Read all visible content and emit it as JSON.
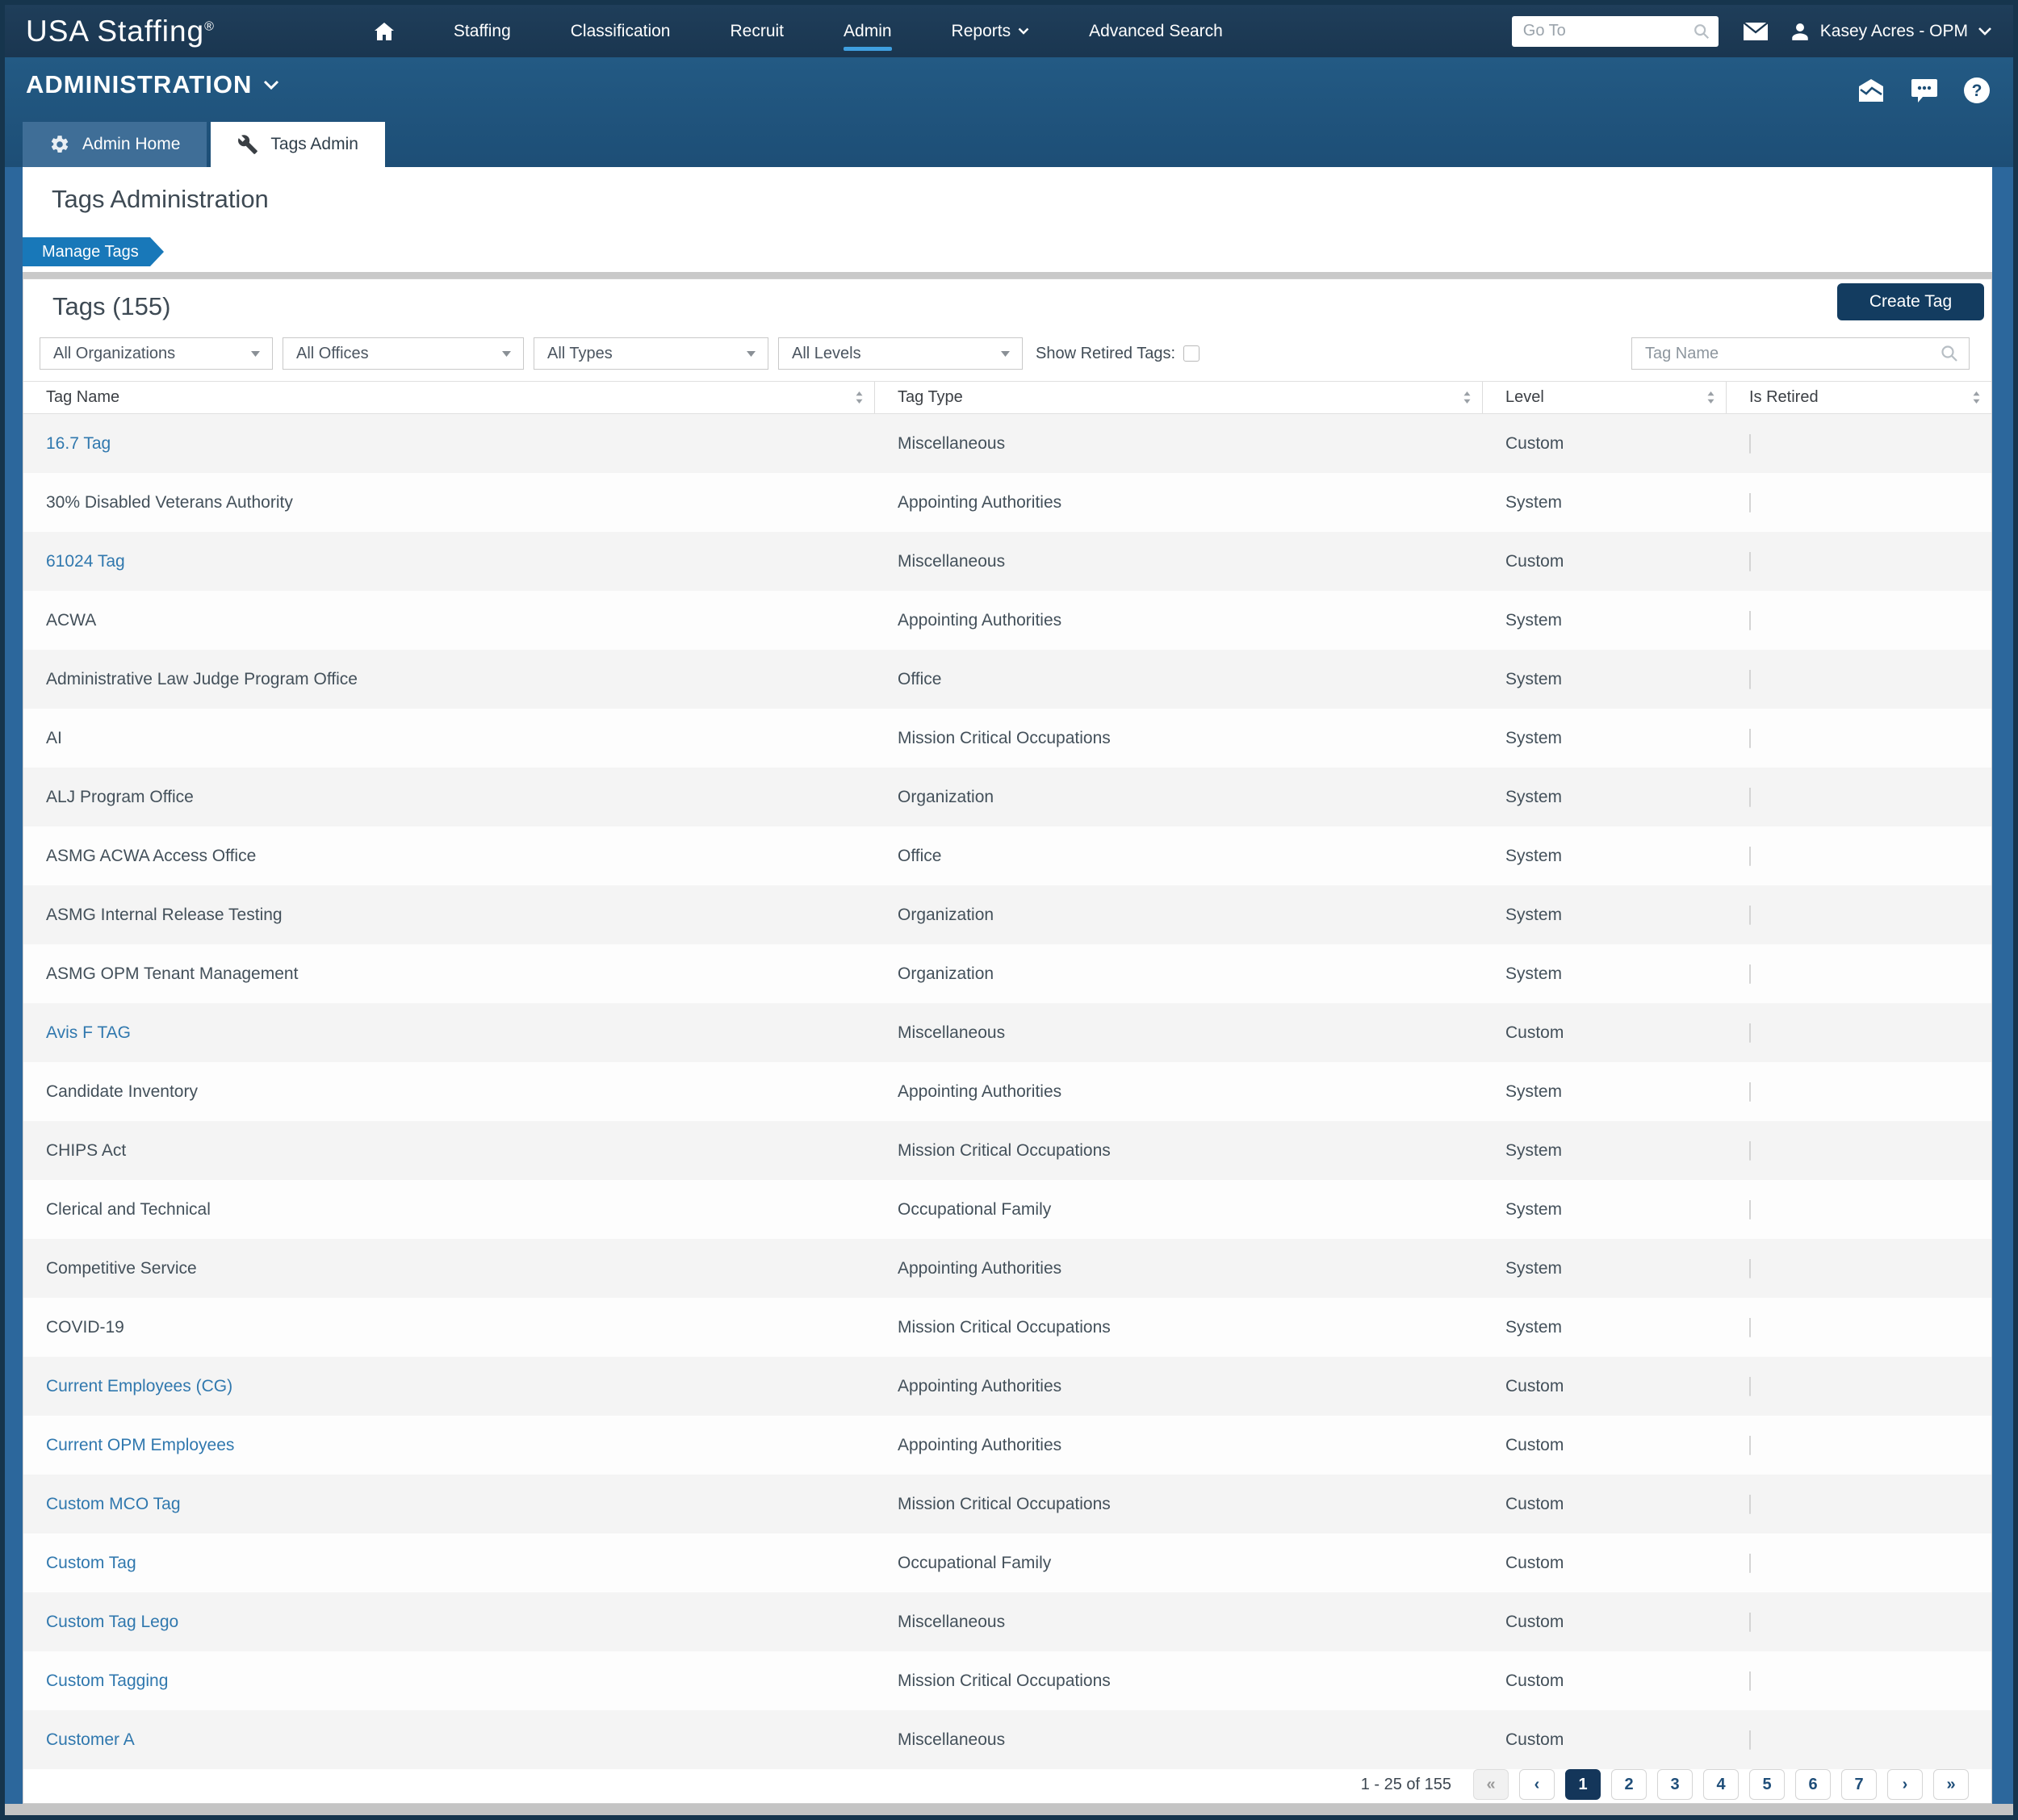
{
  "colors": {
    "topnav_bg": "#1d3a55",
    "band_bg": "#215781",
    "accent_blue": "#3f9fe0",
    "breadcrumb_bg": "#1878b9",
    "link_blue": "#3078ae",
    "button_bg": "#133c60",
    "page_bg": "#2c679c",
    "row_alt_bg": "#f4f4f4"
  },
  "topnav": {
    "brand": "USA Staffing",
    "brand_reg": "®",
    "items": [
      {
        "label": "Staffing",
        "active": false,
        "caret": false
      },
      {
        "label": "Classification",
        "active": false,
        "caret": false
      },
      {
        "label": "Recruit",
        "active": false,
        "caret": false
      },
      {
        "label": "Admin",
        "active": true,
        "caret": false
      },
      {
        "label": "Reports",
        "active": false,
        "caret": true
      },
      {
        "label": "Advanced Search",
        "active": false,
        "caret": false
      }
    ],
    "goto_placeholder": "Go To",
    "user_name": "Kasey Acres - OPM"
  },
  "admin_bar": {
    "title": "ADMINISTRATION"
  },
  "tabs": [
    {
      "label": "Admin Home",
      "icon": "gear-icon",
      "active": false
    },
    {
      "label": "Tags Admin",
      "icon": "wrench-icon",
      "active": true
    }
  ],
  "page": {
    "title": "Tags Administration",
    "breadcrumb": "Manage Tags"
  },
  "panel": {
    "heading": "Tags (155)",
    "create_button": "Create Tag",
    "filters": [
      "All Organizations",
      "All Offices",
      "All Types",
      "All Levels"
    ],
    "show_retired_label": "Show Retired Tags:",
    "show_retired_checked": false,
    "search_placeholder": "Tag Name"
  },
  "table": {
    "columns": [
      "Tag Name",
      "Tag Type",
      "Level",
      "Is Retired"
    ],
    "rows": [
      {
        "name": "16.7 Tag",
        "type": "Miscellaneous",
        "level": "Custom",
        "link": true,
        "retired": false
      },
      {
        "name": "30% Disabled Veterans Authority",
        "type": "Appointing Authorities",
        "level": "System",
        "link": false,
        "retired": false
      },
      {
        "name": "61024 Tag",
        "type": "Miscellaneous",
        "level": "Custom",
        "link": true,
        "retired": false
      },
      {
        "name": "ACWA",
        "type": "Appointing Authorities",
        "level": "System",
        "link": false,
        "retired": false
      },
      {
        "name": "Administrative Law Judge Program Office",
        "type": "Office",
        "level": "System",
        "link": false,
        "retired": false
      },
      {
        "name": "AI",
        "type": "Mission Critical Occupations",
        "level": "System",
        "link": false,
        "retired": false
      },
      {
        "name": "ALJ Program Office",
        "type": "Organization",
        "level": "System",
        "link": false,
        "retired": false
      },
      {
        "name": "ASMG ACWA Access Office",
        "type": "Office",
        "level": "System",
        "link": false,
        "retired": false
      },
      {
        "name": "ASMG Internal Release Testing",
        "type": "Organization",
        "level": "System",
        "link": false,
        "retired": false
      },
      {
        "name": "ASMG OPM Tenant Management",
        "type": "Organization",
        "level": "System",
        "link": false,
        "retired": false
      },
      {
        "name": "Avis F TAG",
        "type": "Miscellaneous",
        "level": "Custom",
        "link": true,
        "retired": false
      },
      {
        "name": "Candidate Inventory",
        "type": "Appointing Authorities",
        "level": "System",
        "link": false,
        "retired": false
      },
      {
        "name": "CHIPS Act",
        "type": "Mission Critical Occupations",
        "level": "System",
        "link": false,
        "retired": false
      },
      {
        "name": "Clerical and Technical",
        "type": "Occupational Family",
        "level": "System",
        "link": false,
        "retired": false
      },
      {
        "name": "Competitive Service",
        "type": "Appointing Authorities",
        "level": "System",
        "link": false,
        "retired": false
      },
      {
        "name": "COVID-19",
        "type": "Mission Critical Occupations",
        "level": "System",
        "link": false,
        "retired": false
      },
      {
        "name": "Current Employees (CG)",
        "type": "Appointing Authorities",
        "level": "Custom",
        "link": true,
        "retired": false
      },
      {
        "name": "Current OPM Employees",
        "type": "Appointing Authorities",
        "level": "Custom",
        "link": true,
        "retired": false
      },
      {
        "name": "Custom MCO Tag",
        "type": "Mission Critical Occupations",
        "level": "Custom",
        "link": true,
        "retired": false
      },
      {
        "name": "Custom Tag",
        "type": "Occupational Family",
        "level": "Custom",
        "link": true,
        "retired": false
      },
      {
        "name": "Custom Tag Lego",
        "type": "Miscellaneous",
        "level": "Custom",
        "link": true,
        "retired": false
      },
      {
        "name": "Custom Tagging",
        "type": "Mission Critical Occupations",
        "level": "Custom",
        "link": true,
        "retired": false
      },
      {
        "name": "Customer A",
        "type": "Miscellaneous",
        "level": "Custom",
        "link": true,
        "retired": false
      }
    ]
  },
  "pagination": {
    "summary": "1 - 25 of 155",
    "first": "«",
    "prev": "‹",
    "next": "›",
    "last": "»",
    "pages": [
      "1",
      "2",
      "3",
      "4",
      "5",
      "6",
      "7"
    ],
    "active_page": "1"
  }
}
